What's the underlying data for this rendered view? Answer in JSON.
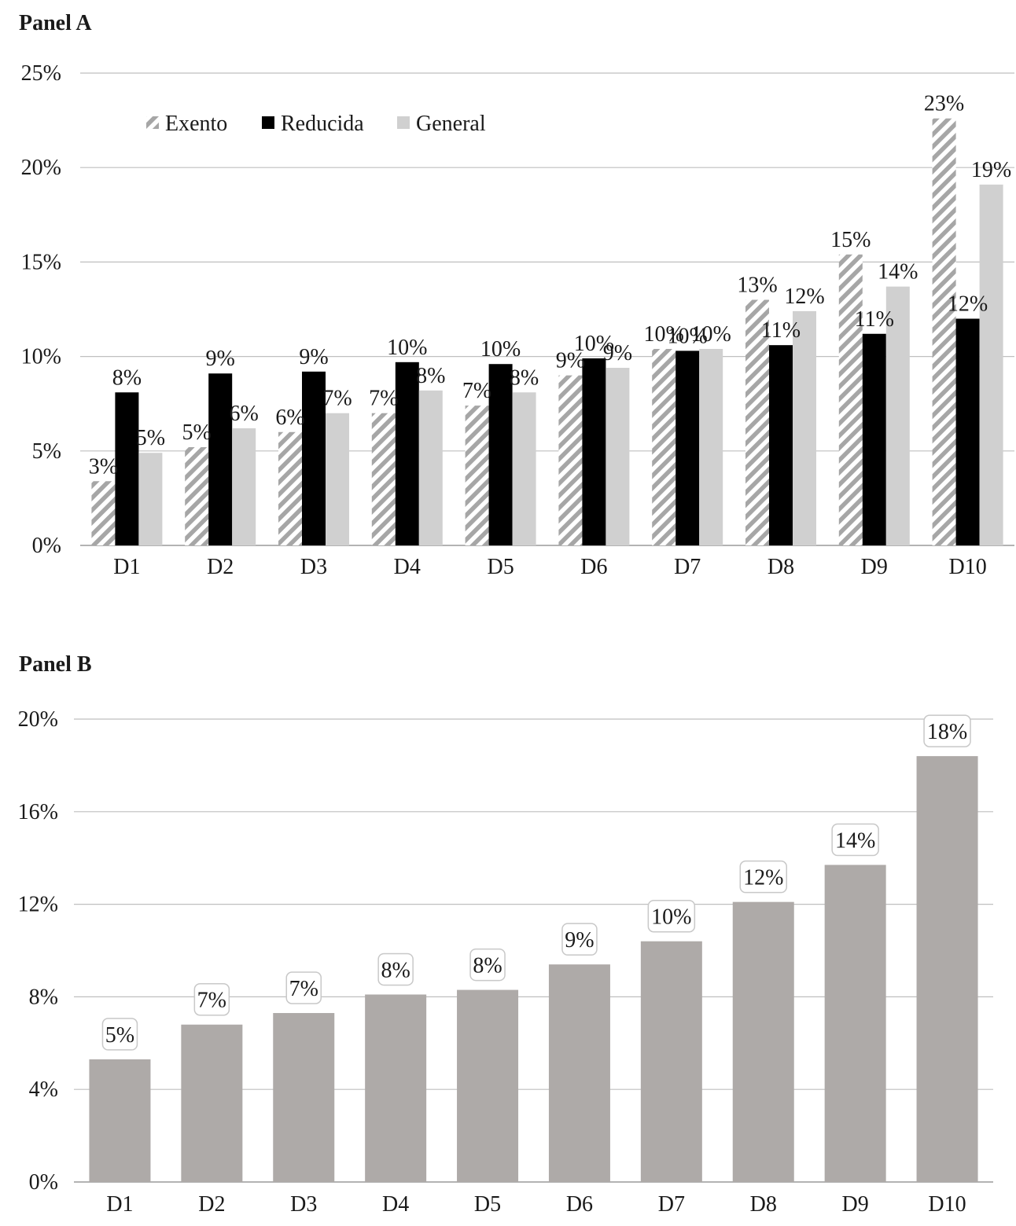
{
  "chart_data": [
    {
      "type": "bar",
      "title": "Panel A",
      "categories": [
        "D1",
        "D2",
        "D3",
        "D4",
        "D5",
        "D6",
        "D7",
        "D8",
        "D9",
        "D10"
      ],
      "ylim": [
        0,
        25
      ],
      "y_ticks": [
        "0%",
        "5%",
        "10%",
        "15%",
        "20%",
        "25%"
      ],
      "grid": true,
      "legend_position": "top-left",
      "series": [
        {
          "name": "Exento",
          "values": [
            3.4,
            5.2,
            6.0,
            7.0,
            7.4,
            9.0,
            10.4,
            13.0,
            15.4,
            22.6
          ],
          "labels": [
            "3%",
            "5%",
            "6%",
            "7%",
            "7%",
            "9%",
            "10%",
            "13%",
            "15%",
            "23%"
          ],
          "color": "#a6a6a6",
          "pattern": "diagonal-hatch"
        },
        {
          "name": "Reducida",
          "values": [
            8.1,
            9.1,
            9.2,
            9.7,
            9.6,
            9.9,
            10.3,
            10.6,
            11.2,
            12.0
          ],
          "labels": [
            "8%",
            "9%",
            "9%",
            "10%",
            "10%",
            "10%",
            "10%",
            "11%",
            "11%",
            "12%"
          ],
          "color": "#000000"
        },
        {
          "name": "General",
          "values": [
            4.9,
            6.2,
            7.0,
            8.2,
            8.1,
            9.4,
            10.4,
            12.4,
            13.7,
            19.1
          ],
          "labels": [
            "5%",
            "6%",
            "7%",
            "8%",
            "8%",
            "9%",
            "10%",
            "12%",
            "14%",
            "19%"
          ],
          "color": "#d0d0d0"
        }
      ]
    },
    {
      "type": "bar",
      "title": "Panel B",
      "categories": [
        "D1",
        "D2",
        "D3",
        "D4",
        "D5",
        "D6",
        "D7",
        "D8",
        "D9",
        "D10"
      ],
      "ylim": [
        0,
        20
      ],
      "y_ticks": [
        "0%",
        "4%",
        "8%",
        "12%",
        "16%",
        "20%"
      ],
      "grid": true,
      "series": [
        {
          "values": [
            5.3,
            6.8,
            7.3,
            8.1,
            8.3,
            9.4,
            10.4,
            12.1,
            13.7,
            18.4
          ],
          "labels": [
            "5%",
            "7%",
            "7%",
            "8%",
            "8%",
            "9%",
            "10%",
            "12%",
            "14%",
            "18%"
          ],
          "color": "#aeaaa8"
        }
      ]
    }
  ]
}
